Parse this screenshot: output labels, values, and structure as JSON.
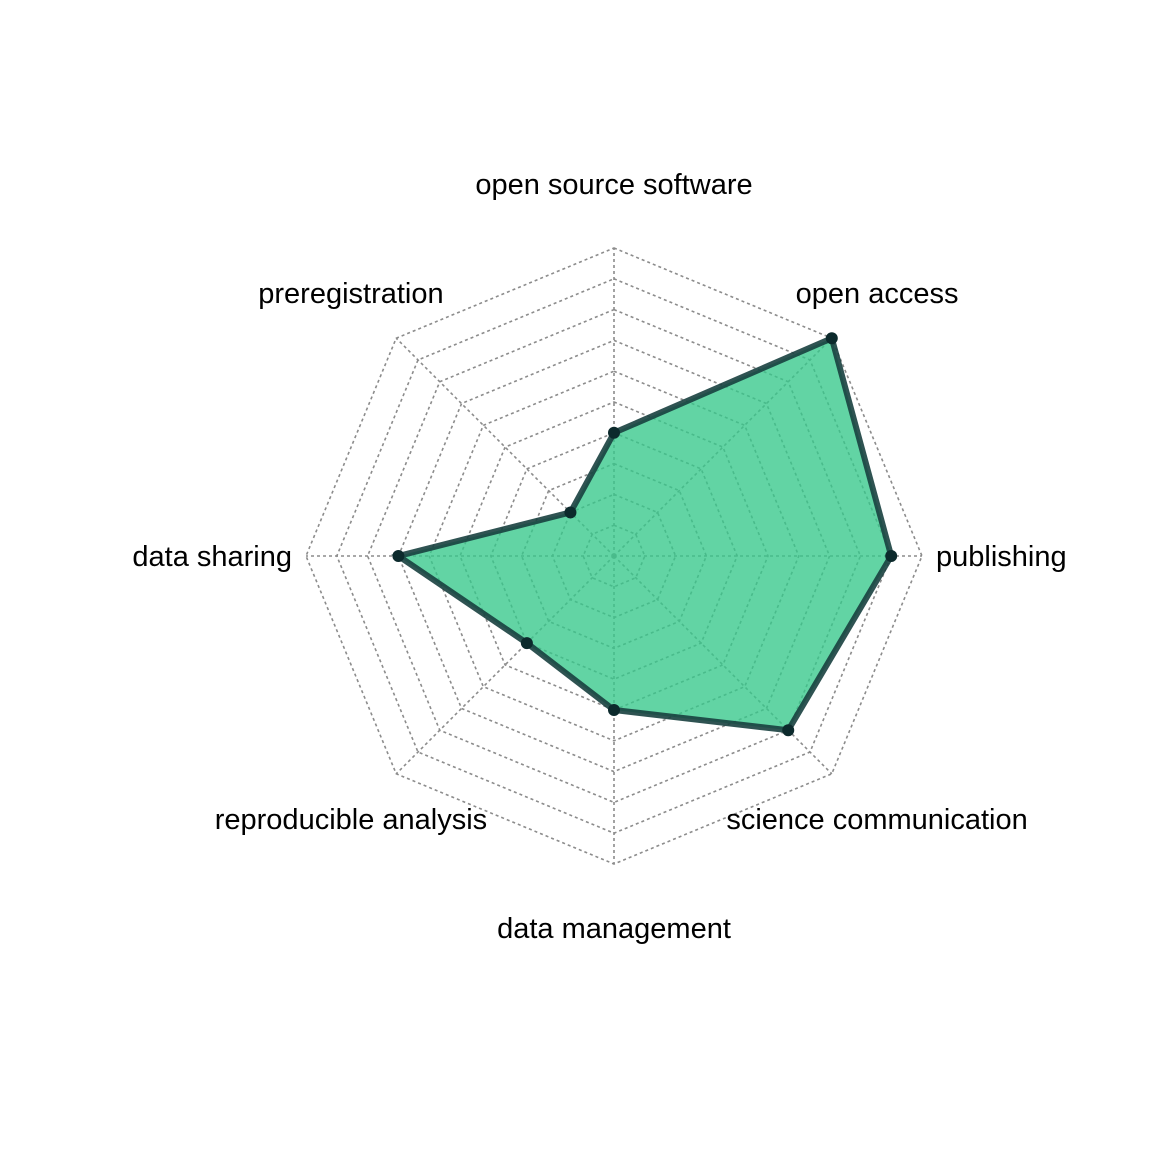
{
  "chart_data": {
    "type": "radar",
    "title": "",
    "axes": [
      "open source software",
      "open access",
      "publishing",
      "science communication",
      "data management",
      "reproducible analysis",
      "data sharing",
      "preregistration"
    ],
    "range": [
      0,
      10
    ],
    "grid_levels": 10,
    "grid": true,
    "series": [
      {
        "values": [
          4,
          10,
          9,
          8,
          5,
          4,
          7,
          2
        ],
        "fill_color": "#36c88a",
        "line_color": "#18403f",
        "point_color": "#0c2a2c"
      }
    ]
  }
}
